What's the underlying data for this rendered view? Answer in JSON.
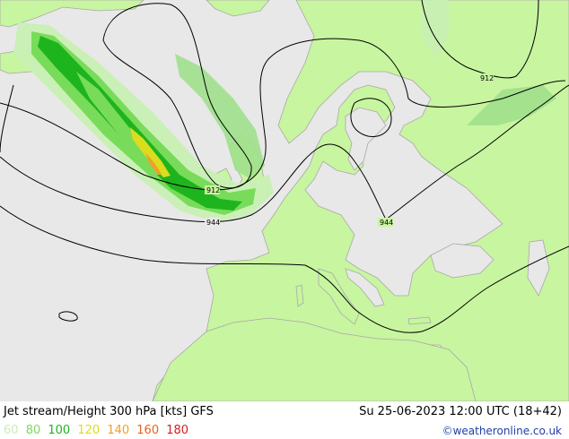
{
  "header": {
    "title": "Jet stream/Height 300 hPa [kts] GFS",
    "valid": "Su 25-06-2023 12:00 UTC (18+42)"
  },
  "legend": [
    {
      "label": "60",
      "color": "#c8f0b4"
    },
    {
      "label": "80",
      "color": "#78dc5a"
    },
    {
      "label": "100",
      "color": "#1eb41e"
    },
    {
      "label": "120",
      "color": "#dcdc1e"
    },
    {
      "label": "140",
      "color": "#f0a028"
    },
    {
      "label": "160",
      "color": "#e6641e"
    },
    {
      "label": "180",
      "color": "#d21e1e"
    }
  ],
  "contour_labels": [
    "912",
    "944",
    "944",
    "912"
  ],
  "credit": "©weatheronline.co.uk",
  "colors": {
    "sea": "#e8e8e8",
    "land": "#c8f5a0",
    "border": "#a8a8a8"
  }
}
